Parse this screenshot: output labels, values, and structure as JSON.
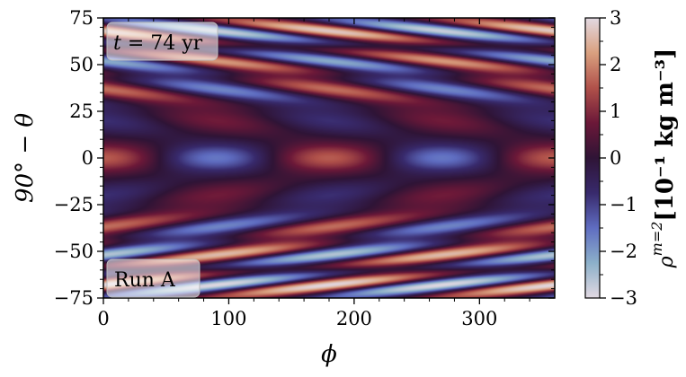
{
  "chart_data": {
    "type": "heatmap",
    "xlabel": "ϕ",
    "ylabel": "90° − θ",
    "xlim": [
      0,
      360
    ],
    "ylim": [
      -75,
      75
    ],
    "x_ticks": [
      "0",
      "100",
      "200",
      "300"
    ],
    "x_tick_values": [
      0,
      100,
      200,
      300
    ],
    "y_ticks": [
      "75",
      "50",
      "25",
      "0",
      "−25",
      "−50",
      "−75"
    ],
    "y_tick_values": [
      75,
      50,
      25,
      0,
      -25,
      -50,
      -75
    ],
    "colorbar": {
      "label": "ρ^{m=2} [10⁻¹ kg m⁻³]",
      "label_main": "ρ",
      "label_sup": "m=2",
      "label_units": "[10⁻¹ kg m⁻³]",
      "range": [
        -3,
        3
      ],
      "ticks": [
        "3",
        "2",
        "1",
        "0",
        "−1",
        "−2",
        "−3"
      ],
      "tick_values": [
        3,
        2,
        1,
        0,
        -1,
        -2,
        -3
      ],
      "colormap": "twilight_shifted",
      "colors": [
        "#e2d9e2",
        "#8cb0c9",
        "#5f6dc1",
        "#382a6c",
        "#2f1436",
        "#6b1838",
        "#b0514a",
        "#d9a07f",
        "#e2d9e2"
      ]
    },
    "pattern": {
      "description": "m=2 azimuthal pattern; high-latitude bands tilted (prograde) in phi",
      "wavenumber": 2,
      "bands": [
        {
          "lat_center": 68,
          "amplitude": 2.8,
          "tilt_deg_per_deg": 1.9
        },
        {
          "lat_center": 52,
          "amplitude": 2.2,
          "tilt_deg_per_deg": 1.8
        },
        {
          "lat_center": 37,
          "amplitude": 1.8,
          "tilt_deg_per_deg": 1.4
        },
        {
          "lat_center": 20,
          "amplitude": 0.8,
          "tilt_deg_per_deg": 0.5
        },
        {
          "lat_center": 0,
          "amplitude": 1.6,
          "tilt_deg_per_deg": 0.0
        },
        {
          "lat_center": -20,
          "amplitude": 0.8,
          "tilt_deg_per_deg": -0.5
        },
        {
          "lat_center": -37,
          "amplitude": 1.8,
          "tilt_deg_per_deg": -1.4
        },
        {
          "lat_center": -52,
          "amplitude": 2.6,
          "tilt_deg_per_deg": -1.8
        },
        {
          "lat_center": -68,
          "amplitude": 3.0,
          "tilt_deg_per_deg": -1.9
        }
      ]
    }
  },
  "annotations": {
    "time_label": "t = 74 yr",
    "time_var": "t",
    "time_rest": " = 74 yr",
    "run_label": "Run A"
  }
}
